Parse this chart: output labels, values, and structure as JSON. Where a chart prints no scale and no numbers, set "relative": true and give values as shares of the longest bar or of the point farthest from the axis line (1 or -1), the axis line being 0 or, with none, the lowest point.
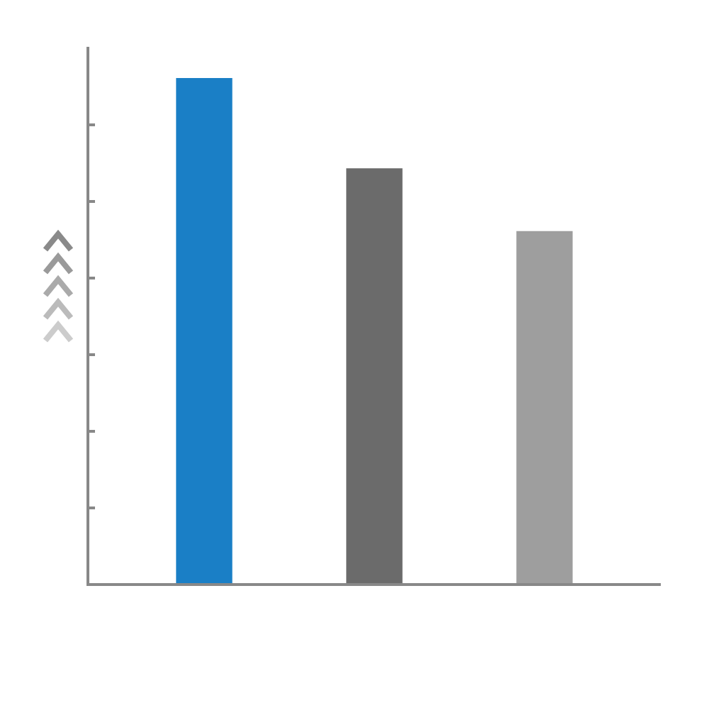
{
  "chart_data": {
    "type": "bar",
    "relative": true,
    "categories": [
      null,
      null,
      null
    ],
    "values": [
      1,
      0.821,
      0.697
    ],
    "colors": [
      "#1a7fc6",
      "#6b6b6b",
      "#9e9e9e"
    ]
  }
}
